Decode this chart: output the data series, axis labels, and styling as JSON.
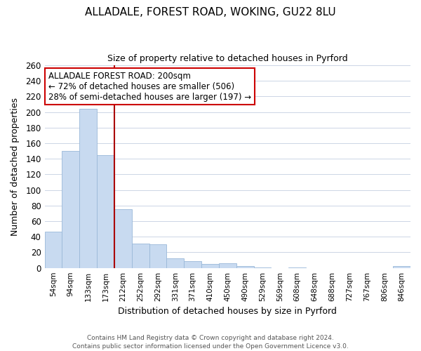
{
  "title": "ALLADALE, FOREST ROAD, WOKING, GU22 8LU",
  "subtitle": "Size of property relative to detached houses in Pyrford",
  "xlabel": "Distribution of detached houses by size in Pyrford",
  "ylabel": "Number of detached properties",
  "categories": [
    "54sqm",
    "94sqm",
    "133sqm",
    "173sqm",
    "212sqm",
    "252sqm",
    "292sqm",
    "331sqm",
    "371sqm",
    "410sqm",
    "450sqm",
    "490sqm",
    "529sqm",
    "569sqm",
    "608sqm",
    "648sqm",
    "688sqm",
    "727sqm",
    "767sqm",
    "806sqm",
    "846sqm"
  ],
  "values": [
    47,
    150,
    204,
    145,
    75,
    31,
    30,
    12,
    9,
    5,
    6,
    2,
    1,
    0,
    1,
    0,
    0,
    0,
    0,
    0,
    2
  ],
  "bar_color": "#c8daf0",
  "bar_edge_color": "#9ab8d8",
  "vline_color": "#aa0000",
  "vline_x": 3.5,
  "ylim": [
    0,
    260
  ],
  "yticks": [
    0,
    20,
    40,
    60,
    80,
    100,
    120,
    140,
    160,
    180,
    200,
    220,
    240,
    260
  ],
  "annotation_title": "ALLADALE FOREST ROAD: 200sqm",
  "annotation_line1": "← 72% of detached houses are smaller (506)",
  "annotation_line2": "28% of semi-detached houses are larger (197) →",
  "annotation_box_color": "#ffffff",
  "annotation_box_edge": "#cc0000",
  "footer_line1": "Contains HM Land Registry data © Crown copyright and database right 2024.",
  "footer_line2": "Contains public sector information licensed under the Open Government Licence v3.0.",
  "background_color": "#ffffff",
  "grid_color": "#ccd5e5"
}
